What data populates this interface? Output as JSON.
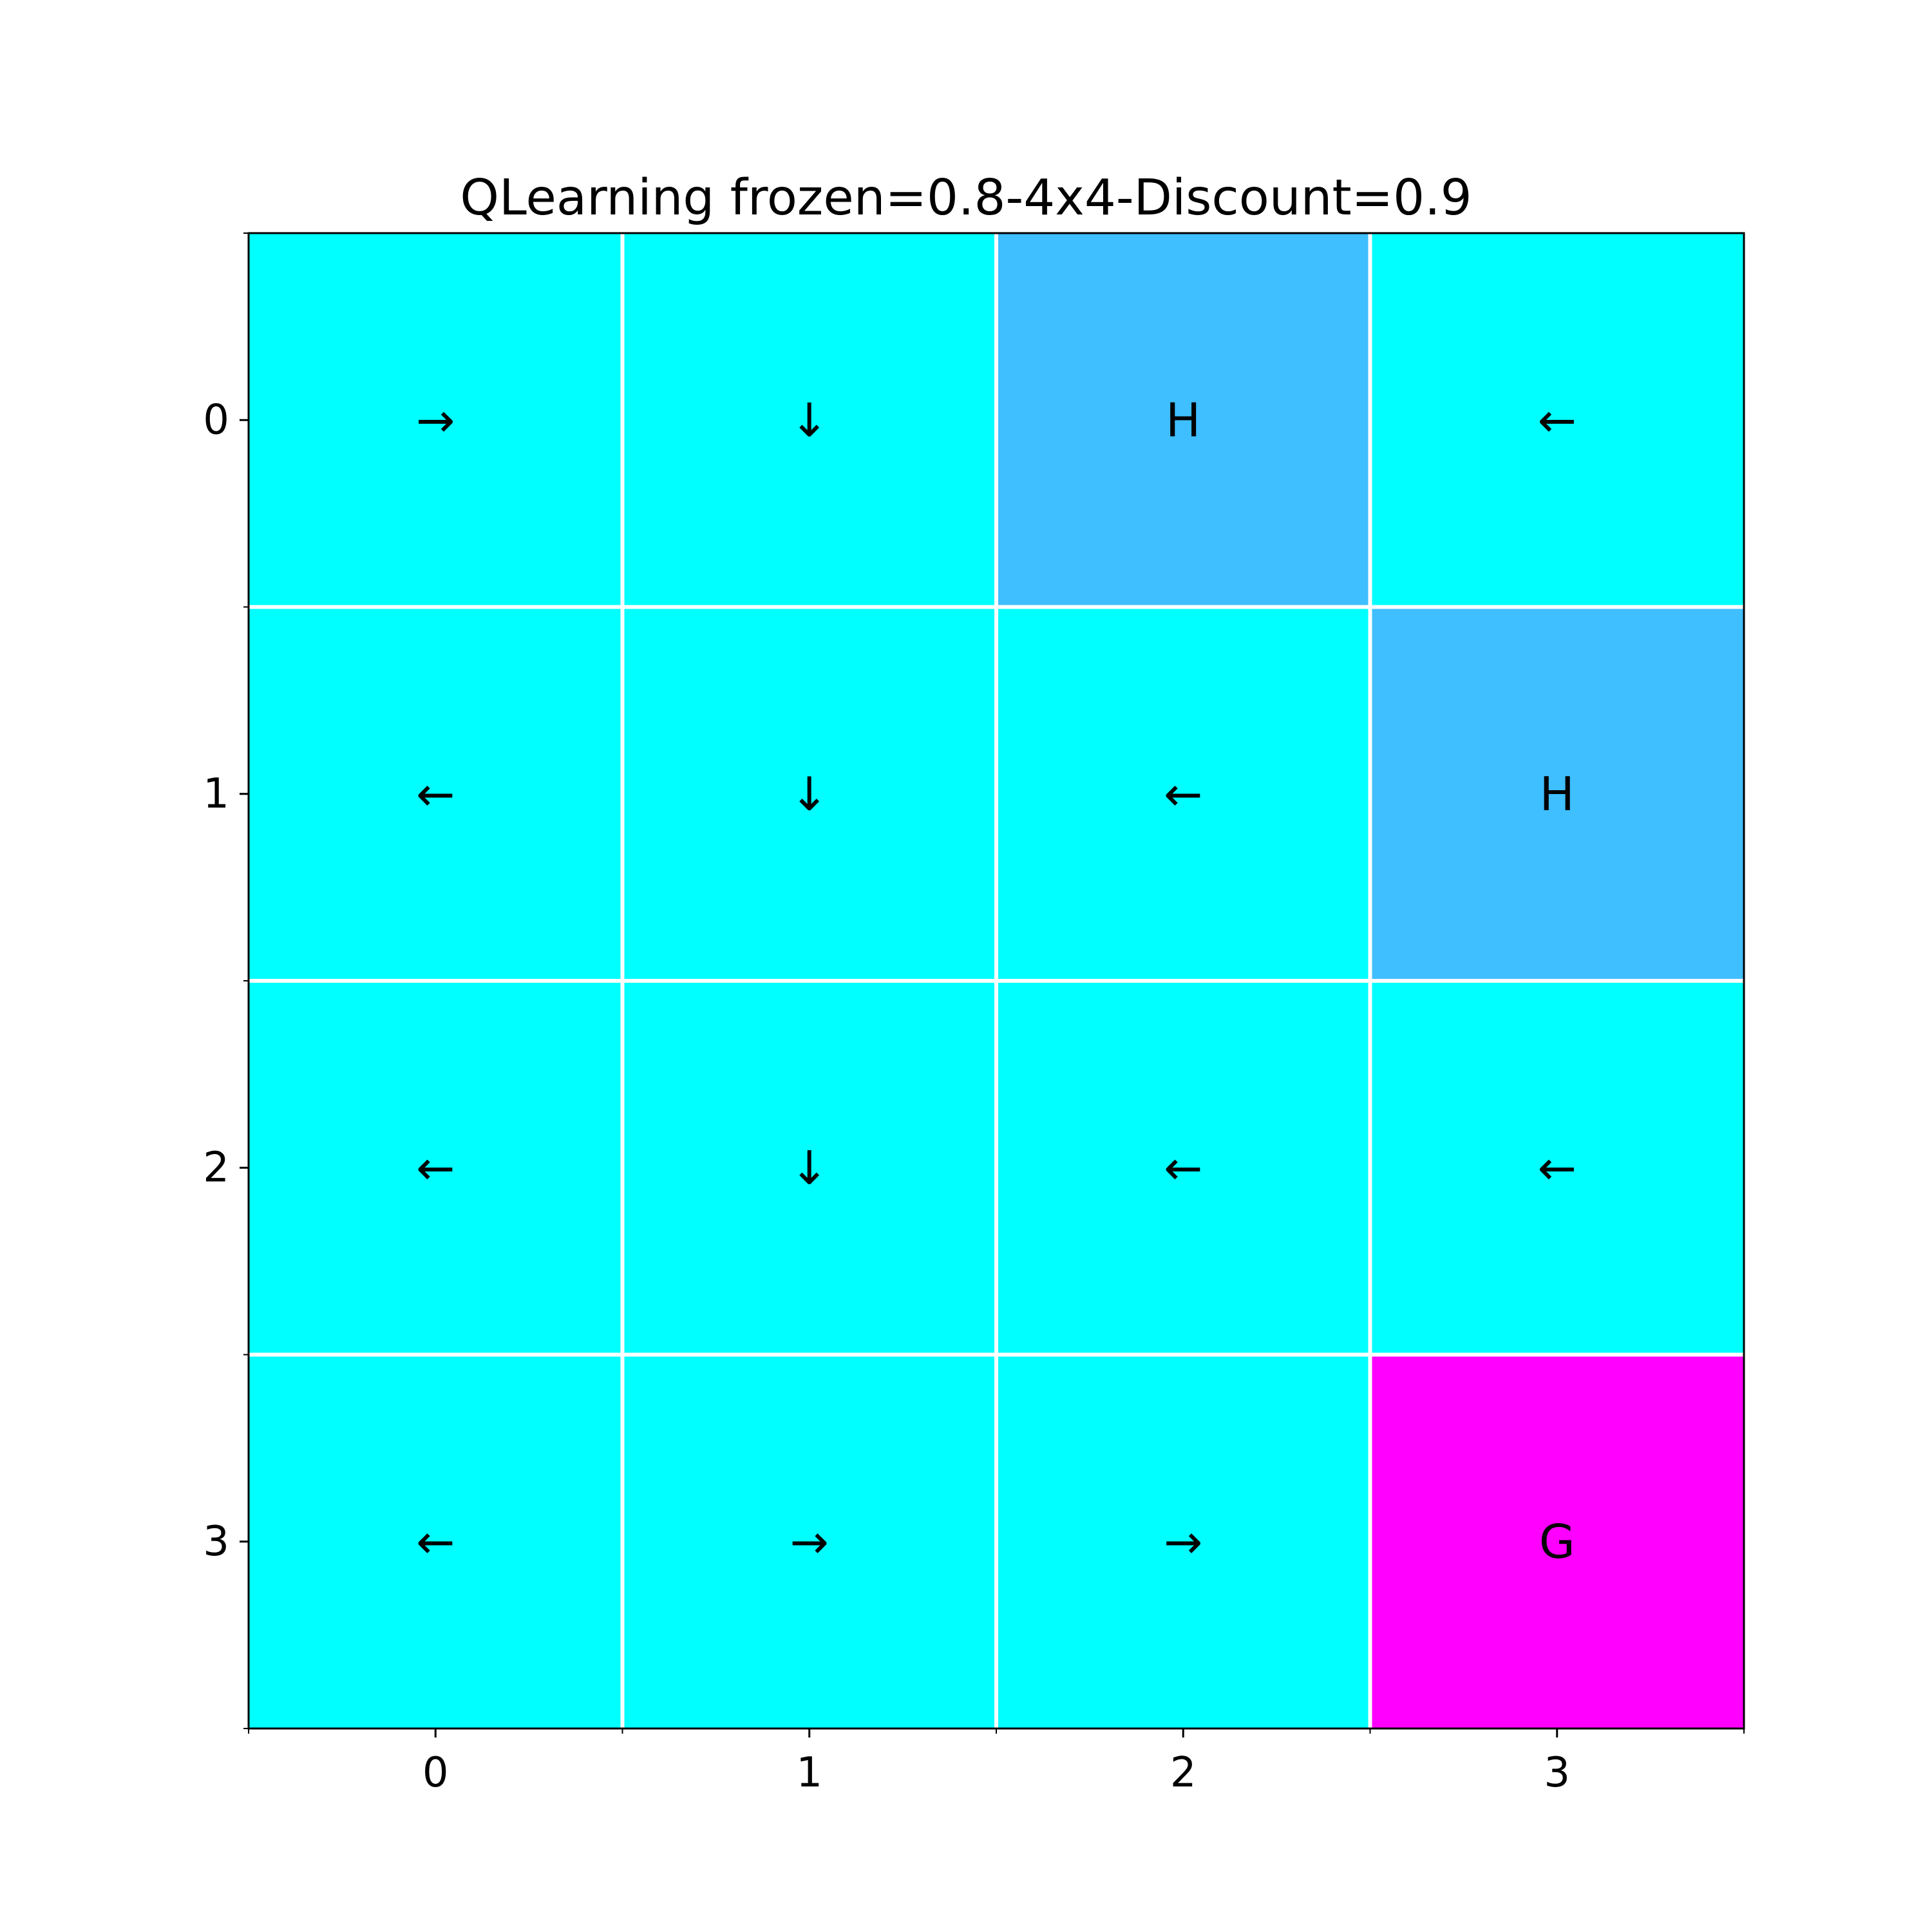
{
  "chart_data": {
    "type": "heatmap",
    "title": "QLearning frozen=0.8-4x4-Discount=0.9",
    "xlabel": "",
    "ylabel": "",
    "x_ticks": [
      "0",
      "1",
      "2",
      "3"
    ],
    "y_ticks": [
      "0",
      "1",
      "2",
      "3"
    ],
    "grid": true,
    "cells": [
      [
        "→",
        "↓",
        "H",
        "←"
      ],
      [
        "←",
        "↓",
        "←",
        "H"
      ],
      [
        "←",
        "↓",
        "←",
        "←"
      ],
      [
        "←",
        "→",
        "→",
        "G"
      ]
    ],
    "cell_types": [
      [
        "F",
        "F",
        "H",
        "F"
      ],
      [
        "F",
        "F",
        "F",
        "H"
      ],
      [
        "F",
        "F",
        "F",
        "F"
      ],
      [
        "F",
        "F",
        "F",
        "G"
      ]
    ],
    "colors": {
      "F": "#00FFFF",
      "H": "#3FBFFF",
      "G": "#FF00FF",
      "grid": "#FFFFFF",
      "axis": "#000000"
    }
  }
}
